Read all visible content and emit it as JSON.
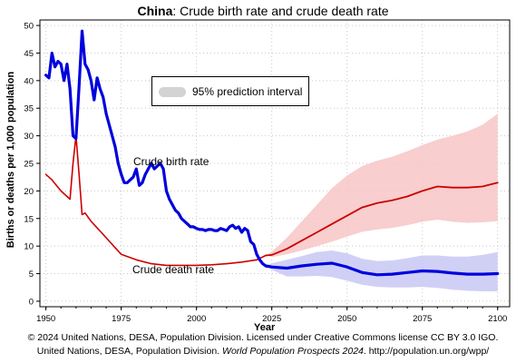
{
  "title": {
    "country": "China",
    "rest": ": Crude birth rate and crude death rate"
  },
  "legend": {
    "label": "95% prediction interval",
    "swatch_color": "#d3d3d3"
  },
  "annotations": {
    "birth": "Crude birth rate",
    "death": "Crude death rate"
  },
  "credits": {
    "line1": "© 2024 United Nations, DESA, Population Division. Licensed under Creative Commons license CC BY 3.0 IGO.",
    "line2_pre": "United Nations, DESA, Population Division. ",
    "line2_italic": "World Population Prospects 2024",
    "line2_post": ". http://population.un.org/wpp/"
  },
  "colors": {
    "birth": "#0000dd",
    "birth_band": "#c8c8f5",
    "death": "#cc0000",
    "death_band": "#f7c6c6"
  },
  "chart_data": {
    "type": "line",
    "title": "China: Crude birth rate and crude death rate",
    "xlabel": "Year",
    "ylabel": "Births or deaths per 1,000 population",
    "xlim": [
      1948,
      2104
    ],
    "ylim": [
      -1,
      51
    ],
    "xticks": [
      1950,
      1975,
      2000,
      2025,
      2050,
      2075,
      2100
    ],
    "yticks": [
      0,
      5,
      10,
      15,
      20,
      25,
      30,
      35,
      40,
      45,
      50
    ],
    "grid": true,
    "legend_position": "top-left",
    "series": [
      {
        "name": "Crude birth rate",
        "x": [
          1950,
          1951,
          1952,
          1953,
          1954,
          1955,
          1956,
          1957,
          1958,
          1959,
          1960,
          1961,
          1962,
          1963,
          1964,
          1965,
          1966,
          1967,
          1968,
          1969,
          1970,
          1971,
          1972,
          1973,
          1974,
          1975,
          1976,
          1977,
          1978,
          1979,
          1980,
          1981,
          1982,
          1983,
          1984,
          1985,
          1986,
          1987,
          1988,
          1989,
          1990,
          1991,
          1992,
          1993,
          1994,
          1995,
          1996,
          1997,
          1998,
          1999,
          2000,
          2001,
          2002,
          2003,
          2004,
          2005,
          2006,
          2007,
          2008,
          2009,
          2010,
          2011,
          2012,
          2013,
          2014,
          2015,
          2016,
          2017,
          2018,
          2019,
          2020,
          2021,
          2022,
          2023
        ],
        "y": [
          41,
          40.5,
          45,
          42.5,
          43.5,
          43,
          40,
          43,
          38.5,
          30,
          29.5,
          39,
          49,
          43,
          42,
          40,
          36.5,
          40.5,
          38.5,
          37,
          34,
          32,
          30,
          28,
          25,
          23,
          21.5,
          21.5,
          22,
          22.5,
          24,
          21,
          21.5,
          23,
          24,
          25,
          24,
          24.5,
          25,
          24,
          20,
          18.5,
          17.5,
          16.5,
          16,
          15,
          14.5,
          14,
          13.5,
          13.5,
          13.2,
          13,
          13,
          12.8,
          13,
          13,
          12.8,
          12.8,
          13.2,
          13,
          12.8,
          13.5,
          13.8,
          13.2,
          13.5,
          12.5,
          13.2,
          12.8,
          10.8,
          10.3,
          8.5,
          7.5,
          6.8,
          6.4
        ]
      },
      {
        "name": "",
        "x": [
          2023,
          2025,
          2030,
          2035,
          2040,
          2045,
          2050,
          2055,
          2060,
          2065,
          2070,
          2075,
          2080,
          2085,
          2090,
          2095,
          2100
        ],
        "y": [
          6.4,
          6.2,
          6.0,
          6.4,
          6.7,
          6.9,
          6.2,
          5.2,
          4.8,
          4.9,
          5.2,
          5.5,
          5.4,
          5.1,
          4.9,
          4.9,
          5.0
        ],
        "lower": [
          6.4,
          5.7,
          4.5,
          4.5,
          4.6,
          4.4,
          3.7,
          3.0,
          2.6,
          2.5,
          2.5,
          2.6,
          2.4,
          2.1,
          1.9,
          1.8,
          1.8
        ],
        "upper": [
          6.4,
          6.9,
          7.5,
          8.2,
          8.9,
          9.2,
          8.7,
          7.7,
          7.3,
          7.4,
          7.8,
          8.3,
          8.3,
          8.1,
          8.1,
          8.4,
          8.9
        ]
      },
      {
        "name": "Crude death rate",
        "x": [
          1950,
          1952,
          1955,
          1958,
          1959,
          1960,
          1961,
          1962,
          1963,
          1965,
          1970,
          1975,
          1980,
          1985,
          1990,
          1995,
          2000,
          2005,
          2010,
          2015,
          2020,
          2023
        ],
        "y": [
          23,
          22,
          20,
          18.5,
          25,
          30,
          23,
          15.7,
          16,
          14.5,
          11.5,
          8.5,
          7.5,
          6.8,
          6.5,
          6.5,
          6.5,
          6.6,
          6.8,
          7.1,
          7.5,
          8.3
        ]
      },
      {
        "name": "",
        "x": [
          2023,
          2025,
          2030,
          2035,
          2040,
          2045,
          2050,
          2055,
          2060,
          2065,
          2070,
          2075,
          2080,
          2085,
          2090,
          2095,
          2100
        ],
        "y": [
          8.3,
          8.4,
          9.5,
          11,
          12.5,
          14,
          15.5,
          17,
          17.8,
          18.3,
          19,
          20,
          20.8,
          20.6,
          20.6,
          20.8,
          21.5
        ],
        "lower": [
          8.3,
          8.0,
          8.5,
          9.2,
          10,
          10.8,
          11.7,
          12.6,
          13,
          13.3,
          13.8,
          14.4,
          14.8,
          14.4,
          14.2,
          14.3,
          14.5
        ],
        "upper": [
          8.3,
          9.0,
          11.5,
          14.5,
          17.5,
          20.5,
          22.8,
          24.5,
          25.5,
          26.2,
          27.2,
          28.3,
          29.3,
          30,
          30.8,
          32,
          34
        ]
      }
    ]
  }
}
